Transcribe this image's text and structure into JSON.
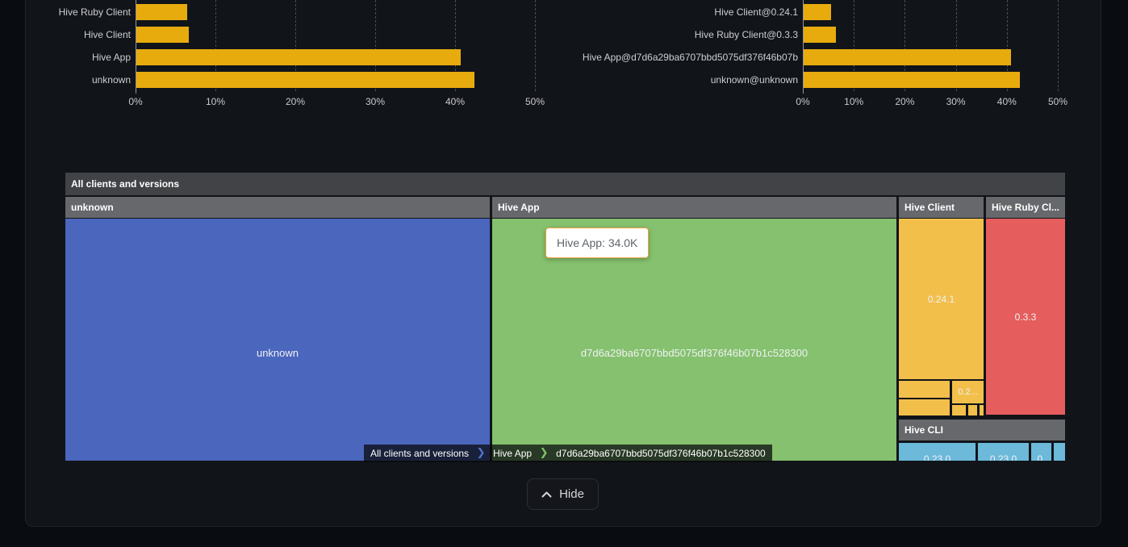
{
  "colors": {
    "bar_gold": "#e7ab0e",
    "page_bg": "#090c11",
    "panel_bg": "#111419",
    "tooltip_border": "#eba23f"
  },
  "chart_data": [
    {
      "id": "clients-share",
      "type": "bar",
      "orientation": "horizontal",
      "title": "",
      "categories": [
        "Hive Ruby Client",
        "Hive Client",
        "Hive App",
        "unknown"
      ],
      "values": [
        6.4,
        6.6,
        40.6,
        42.3
      ],
      "value_unit": "%",
      "xlim": [
        0,
        50
      ],
      "ticks": [
        "0%",
        "10%",
        "20%",
        "30%",
        "40%",
        "50%"
      ],
      "bar_color": "#e7ab0e",
      "grid": "dashed-vertical"
    },
    {
      "id": "client-versions-share",
      "type": "bar",
      "orientation": "horizontal",
      "title": "",
      "categories": [
        "Hive Client@0.24.1",
        "Hive Ruby Client@0.3.3",
        "Hive App@d7d6a29ba6707bbd5075df376f46b07b",
        "unknown@unknown"
      ],
      "values": [
        5.4,
        6.3,
        40.7,
        42.4
      ],
      "value_unit": "%",
      "xlim": [
        0,
        50
      ],
      "ticks": [
        "0%",
        "10%",
        "20%",
        "30%",
        "40%",
        "50%"
      ],
      "bar_color": "#e7ab0e",
      "grid": "dashed-vertical"
    },
    {
      "id": "clients-treemap",
      "type": "treemap",
      "title": "All clients and versions",
      "groups": [
        {
          "name": "unknown",
          "color": "#4b66bd",
          "children": [
            {
              "name": "unknown"
            }
          ]
        },
        {
          "name": "Hive App",
          "color": "#85c16e",
          "children": [
            {
              "name": "d7d6a29ba6707bbd5075df376f46b07b1c528300",
              "value_label": "34.0K"
            }
          ]
        },
        {
          "name": "Hive Client",
          "color": "#f2bf4b",
          "children": [
            {
              "name": "0.24.1"
            },
            {
              "name": "0.2..."
            }
          ]
        },
        {
          "name": "Hive Ruby Cl...",
          "color": "#e55d5c",
          "children": [
            {
              "name": "0.3.3"
            }
          ]
        },
        {
          "name": "Hive CLI",
          "color": "#6cb9da",
          "children": [
            {
              "name": "0.23.0"
            },
            {
              "name": "0.23.0"
            },
            {
              "name": "0."
            }
          ]
        }
      ]
    }
  ],
  "treemap_ui": {
    "tooltip": "Hive App: 34.0K",
    "breadcrumb": {
      "chevron": "❯",
      "items": [
        {
          "label": "All clients and versions",
          "arrow_color": "#5273d4"
        },
        {
          "label": "Hive App",
          "arrow_color": "#7fc26b"
        },
        {
          "label": "d7d6a29ba6707bbd5075df376f46b07b1c528300",
          "arrow_color": ""
        }
      ]
    }
  },
  "footer": {
    "hide_label": "Hide"
  }
}
